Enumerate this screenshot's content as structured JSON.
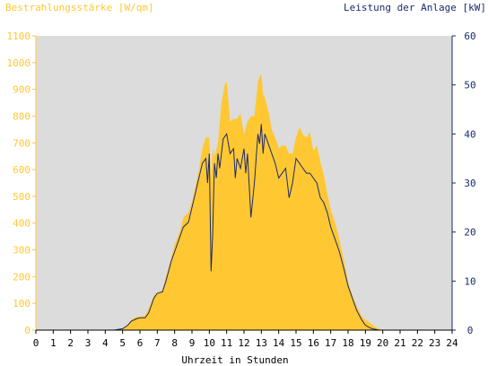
{
  "chart_data": {
    "type": "area",
    "title_left": "Bestrahlungsstärke [W/qm]",
    "title_right": "Leistung der Anlage [kW]",
    "xlabel": "Uhrzeit in Stunden",
    "xlim": [
      0,
      24
    ],
    "x_ticks": [
      "0",
      "1",
      "2",
      "3",
      "4",
      "5",
      "6",
      "7",
      "8",
      "9",
      "10",
      "11",
      "12",
      "13",
      "14",
      "15",
      "16",
      "17",
      "18",
      "19",
      "20",
      "21",
      "22",
      "23",
      "24"
    ],
    "ylim_left": [
      0,
      1100
    ],
    "y_ticks_left": [
      "0",
      "100",
      "200",
      "300",
      "400",
      "500",
      "600",
      "700",
      "800",
      "900",
      "1000",
      "1100"
    ],
    "ylim_right": [
      0,
      60
    ],
    "y_ticks_right": [
      "0",
      "10",
      "20",
      "30",
      "40",
      "50",
      "60"
    ],
    "colors": {
      "plot_background": "#dcdcdc",
      "irradiance_fill": "#ffc832",
      "power_line": "#1a2a6e",
      "left_axis": "#ffc832",
      "right_axis": "#1a2a6e"
    },
    "series": [
      {
        "kind": "area",
        "axis": "left",
        "x": [
          0,
          4.5,
          5,
          5.3,
          5.5,
          5.8,
          6,
          6.3,
          6.5,
          6.8,
          7,
          7.3,
          7.5,
          7.8,
          8,
          8.3,
          8.5,
          8.8,
          9,
          9.2,
          9.4,
          9.6,
          9.8,
          10,
          10.1,
          10.2,
          10.3,
          10.5,
          10.7,
          10.9,
          11,
          11.2,
          11.4,
          11.6,
          11.8,
          12,
          12.2,
          12.4,
          12.6,
          12.8,
          13,
          13.1,
          13.2,
          13.4,
          13.6,
          13.8,
          14,
          14.2,
          14.4,
          14.6,
          14.8,
          15,
          15.2,
          15.4,
          15.6,
          15.8,
          16,
          16.2,
          16.4,
          16.6,
          16.8,
          17,
          17.3,
          17.5,
          17.8,
          18,
          18.3,
          18.5,
          18.8,
          19,
          19.3,
          19.5,
          19.8,
          20,
          20.3,
          20.5,
          24
        ],
        "values": [
          0,
          0,
          5,
          20,
          40,
          50,
          50,
          55,
          80,
          130,
          140,
          150,
          200,
          270,
          320,
          370,
          420,
          440,
          480,
          540,
          600,
          680,
          720,
          720,
          560,
          680,
          650,
          700,
          850,
          920,
          930,
          780,
          790,
          790,
          810,
          730,
          780,
          800,
          800,
          930,
          960,
          880,
          870,
          820,
          750,
          720,
          680,
          690,
          690,
          660,
          660,
          720,
          760,
          730,
          720,
          740,
          670,
          690,
          630,
          580,
          510,
          450,
          390,
          340,
          250,
          180,
          120,
          90,
          50,
          40,
          25,
          15,
          5,
          0,
          0,
          0,
          0
        ]
      },
      {
        "kind": "line",
        "axis": "right",
        "x": [
          0,
          4.5,
          5,
          5.3,
          5.5,
          5.8,
          6,
          6.3,
          6.5,
          6.8,
          7,
          7.3,
          7.5,
          7.8,
          8,
          8.3,
          8.5,
          8.8,
          9,
          9.2,
          9.4,
          9.6,
          9.8,
          9.9,
          10,
          10.1,
          10.2,
          10.25,
          10.3,
          10.4,
          10.5,
          10.6,
          10.8,
          11,
          11.2,
          11.4,
          11.5,
          11.6,
          11.8,
          12,
          12.1,
          12.2,
          12.4,
          12.6,
          12.8,
          12.9,
          13,
          13.1,
          13.2,
          13.4,
          13.6,
          13.8,
          14,
          14.2,
          14.4,
          14.6,
          14.8,
          15,
          15.2,
          15.4,
          15.6,
          15.8,
          16,
          16.2,
          16.4,
          16.6,
          16.8,
          17,
          17.3,
          17.5,
          17.8,
          18,
          18.3,
          18.5,
          18.8,
          19,
          19.3,
          19.5,
          19.8,
          20,
          20.3,
          20.5,
          24
        ],
        "values": [
          0,
          0,
          0.3,
          1,
          1.8,
          2.3,
          2.5,
          2.5,
          3.5,
          6.5,
          7.5,
          7.8,
          10,
          14,
          16,
          19,
          21,
          22,
          25,
          28,
          31,
          34,
          35,
          30,
          36,
          12,
          20,
          28,
          34,
          31,
          36,
          33,
          39,
          40,
          36,
          37,
          31,
          35,
          33,
          37,
          32,
          36,
          23,
          30,
          40,
          38,
          42,
          36,
          40,
          38,
          36,
          34,
          31,
          32,
          33,
          27,
          30,
          35,
          34,
          33,
          32,
          32,
          31,
          30,
          27,
          26,
          24,
          21,
          18,
          16,
          12,
          9,
          6,
          4,
          2,
          1,
          0.4,
          0.2,
          0,
          0,
          0,
          0,
          0
        ]
      }
    ]
  }
}
